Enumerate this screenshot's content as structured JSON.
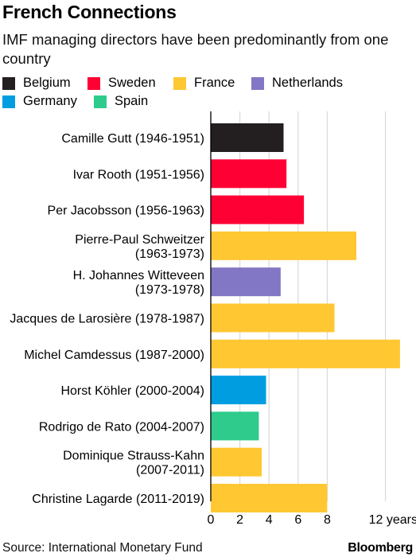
{
  "header": {
    "title": "French Connections",
    "subtitle": "IMF managing directors have been predominantly from one country"
  },
  "legend": [
    {
      "label": "Belgium",
      "color": "#231f20"
    },
    {
      "label": "Sweden",
      "color": "#ff0035"
    },
    {
      "label": "France",
      "color": "#ffc833"
    },
    {
      "label": "Netherlands",
      "color": "#8277c4"
    },
    {
      "label": "Germany",
      "color": "#009ee0"
    },
    {
      "label": "Spain",
      "color": "#2ecb8c"
    }
  ],
  "footer": {
    "source": "Source: International Monetary Fund",
    "brand": "Bloomberg"
  },
  "chart_data": {
    "type": "bar",
    "orientation": "horizontal",
    "x_unit": "years",
    "xlim": [
      0,
      13
    ],
    "x_ticks": [
      0,
      2,
      4,
      6,
      8,
      12
    ],
    "x_tick_labels": [
      "0",
      "2",
      "4",
      "6",
      "8",
      "12 years"
    ],
    "grid": true,
    "categories": [
      "Camille Gutt (1946-1951)",
      "Ivar Rooth (1951-1956)",
      "Per Jacobsson (1956-1963)",
      "Pierre-Paul Schweitzer (1963-1973)",
      "H. Johannes Witteveen (1973-1978)",
      "Jacques de Larosière (1978-1987)",
      "Michel Camdessus (1987-2000)",
      "Horst Köhler (2000-2004)",
      "Rodrigo de Rato (2004-2007)",
      "Dominique Strauss-Kahn (2007-2011)",
      "Christine Lagarde (2011-2019)"
    ],
    "label_lines": [
      [
        "Camille Gutt (1946-1951)"
      ],
      [
        "Ivar Rooth (1951-1956)"
      ],
      [
        "Per Jacobsson (1956-1963)"
      ],
      [
        "Pierre-Paul Schweitzer",
        "(1963-1973)"
      ],
      [
        "H. Johannes Witteveen",
        "(1973-1978)"
      ],
      [
        "Jacques de Larosière (1978-1987)"
      ],
      [
        "Michel Camdessus (1987-2000)"
      ],
      [
        "Horst Köhler (2000-2004)"
      ],
      [
        "Rodrigo de Rato (2004-2007)"
      ],
      [
        "Dominique Strauss-Kahn",
        "(2007-2011)"
      ],
      [
        "Christine Lagarde (2011-2019)"
      ]
    ],
    "values": [
      5.0,
      5.2,
      6.4,
      10.0,
      4.8,
      8.5,
      13.0,
      3.8,
      3.3,
      3.5,
      8.0
    ],
    "countries": [
      "Belgium",
      "Sweden",
      "Sweden",
      "France",
      "Netherlands",
      "France",
      "France",
      "Germany",
      "Spain",
      "France",
      "France"
    ]
  }
}
